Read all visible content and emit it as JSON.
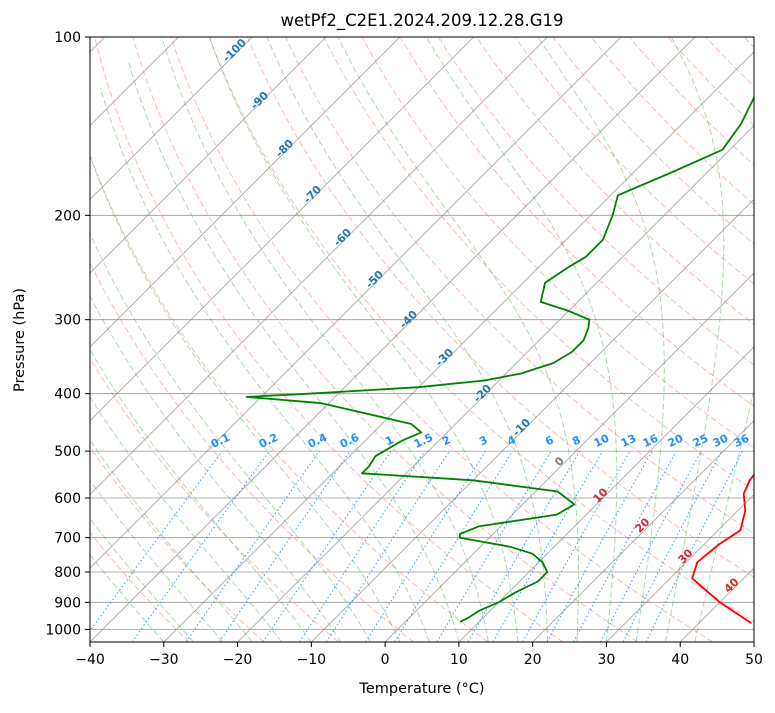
{
  "chart_data": {
    "type": "line",
    "subtype": "skew-t log-p diagram",
    "title": "wetPf2_C2E1.2024.209.12.28.G19",
    "xlabel": "Temperature (°C)",
    "ylabel": "Pressure (hPa)",
    "xlim": [
      -40,
      50
    ],
    "ylim": [
      1050,
      100
    ],
    "y_scale": "log",
    "grid": true,
    "x_ticks": [
      "−40",
      "−30",
      "−20",
      "−10",
      "0",
      "10",
      "20",
      "30",
      "40",
      "50"
    ],
    "x_tick_values": [
      -40,
      -30,
      -20,
      -10,
      0,
      10,
      20,
      30,
      40,
      50
    ],
    "y_ticks": [
      "100",
      "200",
      "300",
      "400",
      "500",
      "600",
      "700",
      "800",
      "900",
      "1000"
    ],
    "y_tick_values": [
      100,
      200,
      300,
      400,
      500,
      600,
      700,
      800,
      900,
      1000
    ],
    "colors": {
      "temperature": "#ff0000",
      "dewpoint": "#008000",
      "dry_adiabat": "#fa8072",
      "moist_adiabat": "#2ca02c",
      "mixing_ratio": "#1e90ff",
      "isotherm": "#7f7f7f",
      "isobar": "#7f7f7f"
    },
    "series": [
      {
        "key": "temperature",
        "points": [
          [
            47,
            975
          ],
          [
            40,
            900
          ],
          [
            33,
            820
          ],
          [
            31.5,
            770
          ],
          [
            32,
            720
          ],
          [
            33,
            680
          ],
          [
            31,
            630
          ],
          [
            28.5,
            590
          ],
          [
            27.5,
            560
          ],
          [
            27,
            525
          ],
          [
            26.5,
            490
          ],
          [
            25.5,
            460
          ],
          [
            24,
            420
          ],
          [
            21,
            385
          ],
          [
            18,
            350
          ],
          [
            16,
            320
          ],
          [
            15,
            300
          ],
          [
            16,
            280
          ],
          [
            15,
            260
          ],
          [
            11,
            235
          ],
          [
            7,
            210
          ],
          [
            3,
            188
          ],
          [
            -1,
            168
          ],
          [
            -5,
            150
          ],
          [
            -8,
            135
          ],
          [
            -10,
            124
          ],
          [
            -11,
            115
          ],
          [
            -11.5,
            108
          ],
          [
            -12,
            100
          ]
        ]
      },
      {
        "key": "dewpoint",
        "points": [
          [
            7.5,
            970
          ],
          [
            8,
            955
          ],
          [
            8.5,
            930
          ],
          [
            10,
            900
          ],
          [
            11,
            865
          ],
          [
            12.5,
            830
          ],
          [
            12.5,
            800
          ],
          [
            10.5,
            770
          ],
          [
            8,
            745
          ],
          [
            4,
            725
          ],
          [
            -4,
            700
          ],
          [
            -4.5,
            690
          ],
          [
            -3,
            670
          ],
          [
            6,
            640
          ],
          [
            7,
            615
          ],
          [
            3,
            585
          ],
          [
            -10,
            560
          ],
          [
            -26,
            545
          ],
          [
            -26,
            530
          ],
          [
            -26.5,
            510
          ],
          [
            -25,
            480
          ],
          [
            -23.5,
            465
          ],
          [
            -26,
            450
          ],
          [
            -41,
            415
          ],
          [
            -52,
            405
          ],
          [
            -44,
            400
          ],
          [
            -30,
            390
          ],
          [
            -22,
            380
          ],
          [
            -18,
            370
          ],
          [
            -15,
            355
          ],
          [
            -14,
            340
          ],
          [
            -14,
            325
          ],
          [
            -15,
            310
          ],
          [
            -16,
            300
          ],
          [
            -20,
            290
          ],
          [
            -25,
            280
          ],
          [
            -27,
            260
          ],
          [
            -26,
            245
          ],
          [
            -25,
            235
          ],
          [
            -25,
            220
          ],
          [
            -27,
            200
          ],
          [
            -29,
            185
          ],
          [
            -25,
            170
          ],
          [
            -21,
            155
          ],
          [
            -22,
            140
          ],
          [
            -24,
            125
          ],
          [
            -27,
            115
          ],
          [
            -28,
            108
          ],
          [
            -27,
            104
          ],
          [
            -26.5,
            100
          ]
        ]
      }
    ],
    "dry_adiabat_labels": [
      "-100",
      "-90",
      "-80",
      "-70",
      "-60",
      "-50",
      "-40",
      "-30",
      "-20",
      "-10",
      "0",
      "10",
      "20",
      "30",
      "40"
    ],
    "mixing_ratio_labels": [
      "0.1",
      "0.2",
      "0.4",
      "0.6",
      "1",
      "1.5",
      "2",
      "3",
      "4",
      "6",
      "8",
      "10",
      "13",
      "16",
      "20",
      "25",
      "30",
      "36"
    ],
    "mixing_ratio_values": [
      0.1,
      0.2,
      0.4,
      0.6,
      1,
      1.5,
      2,
      3,
      4,
      6,
      8,
      10,
      13,
      16,
      20,
      25,
      30,
      36
    ]
  }
}
